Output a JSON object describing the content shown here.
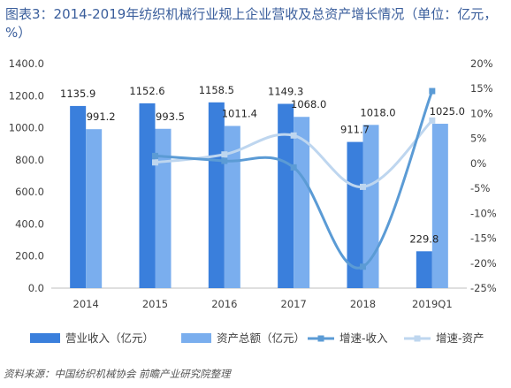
{
  "title": "图表3：2014-2019年纺织机械行业规上企业营收及总资产增长情况（单位：亿元，%）",
  "source": "资料来源：中国纺织机械协会 前瞻产业研究院整理",
  "colors": {
    "revenue_bar": "#3a7fdc",
    "assets_bar": "#7aaeee",
    "revenue_growth_line": "#5b9bd5",
    "assets_growth_line": "#bed6ef"
  },
  "chart_data": {
    "type": "bar",
    "categories": [
      "2014",
      "2015",
      "2016",
      "2017",
      "2018",
      "2019Q1"
    ],
    "y_left": {
      "min": 0,
      "max": 1400,
      "ticks": [
        "0.0",
        "200.0",
        "400.0",
        "600.0",
        "800.0",
        "1000.0",
        "1200.0",
        "1400.0"
      ]
    },
    "y_right": {
      "min": -25,
      "max": 20,
      "ticks": [
        "-25%",
        "-20%",
        "-15%",
        "-10%",
        "-5%",
        "0%",
        "5%",
        "10%",
        "15%",
        "20%"
      ]
    },
    "series": [
      {
        "name": "营业收入（亿元）",
        "kind": "bar",
        "axis": "left",
        "values": [
          1135.9,
          1152.6,
          1158.5,
          1149.3,
          911.7,
          229.8
        ],
        "labels": [
          "1135.9",
          "1152.6",
          "1158.5",
          "1149.3",
          "911.7",
          "229.8"
        ]
      },
      {
        "name": "资产总额（亿元）",
        "kind": "bar",
        "axis": "left",
        "values": [
          991.2,
          993.5,
          1011.4,
          1068.0,
          1018.0,
          1025.0
        ],
        "labels": [
          "991.2",
          "993.5",
          "1011.4",
          "1068.0",
          "1018.0",
          "1025.0"
        ]
      },
      {
        "name": "增速-收入",
        "kind": "line",
        "axis": "right",
        "values": [
          null,
          1.5,
          0.5,
          -0.8,
          -20.7,
          14.5
        ]
      },
      {
        "name": "增速-资产",
        "kind": "line",
        "axis": "right",
        "values": [
          null,
          0.2,
          1.8,
          5.6,
          -4.7,
          8.6
        ]
      }
    ],
    "legend_position": "bottom",
    "grid": false
  }
}
